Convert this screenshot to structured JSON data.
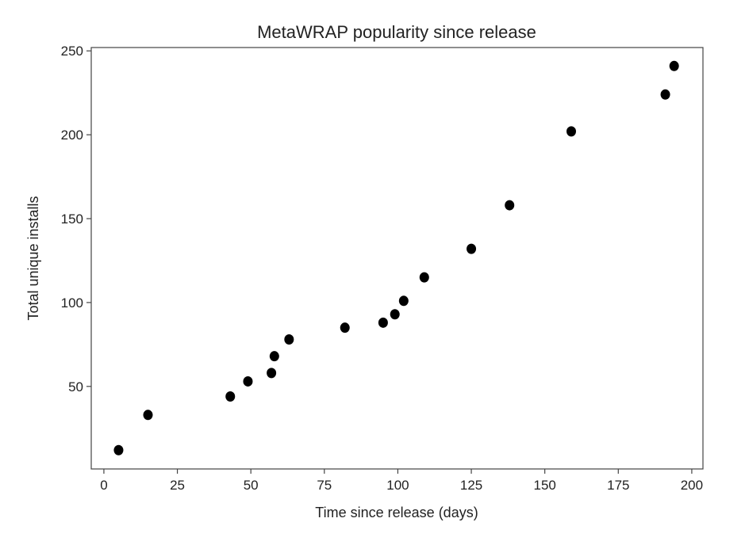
{
  "chart_data": {
    "type": "scatter",
    "title": "MetaWRAP popularity since release",
    "xlabel": "Time since release (days)",
    "ylabel": "Total unique installs",
    "xlim": [
      -4.3,
      203.8
    ],
    "ylim": [
      0.8,
      252
    ],
    "xticks": [
      0,
      25,
      50,
      75,
      100,
      125,
      150,
      175,
      200
    ],
    "yticks": [
      50,
      100,
      150,
      200,
      250
    ],
    "grid": false,
    "marker_color": "#000000",
    "points": [
      {
        "x": 5,
        "y": 12
      },
      {
        "x": 15,
        "y": 33
      },
      {
        "x": 43,
        "y": 44
      },
      {
        "x": 49,
        "y": 53
      },
      {
        "x": 57,
        "y": 58
      },
      {
        "x": 58,
        "y": 68
      },
      {
        "x": 63,
        "y": 78
      },
      {
        "x": 82,
        "y": 85
      },
      {
        "x": 95,
        "y": 88
      },
      {
        "x": 99,
        "y": 93
      },
      {
        "x": 102,
        "y": 101
      },
      {
        "x": 109,
        "y": 115
      },
      {
        "x": 125,
        "y": 132
      },
      {
        "x": 138,
        "y": 158
      },
      {
        "x": 159,
        "y": 202
      },
      {
        "x": 191,
        "y": 224
      },
      {
        "x": 194,
        "y": 241
      }
    ]
  }
}
